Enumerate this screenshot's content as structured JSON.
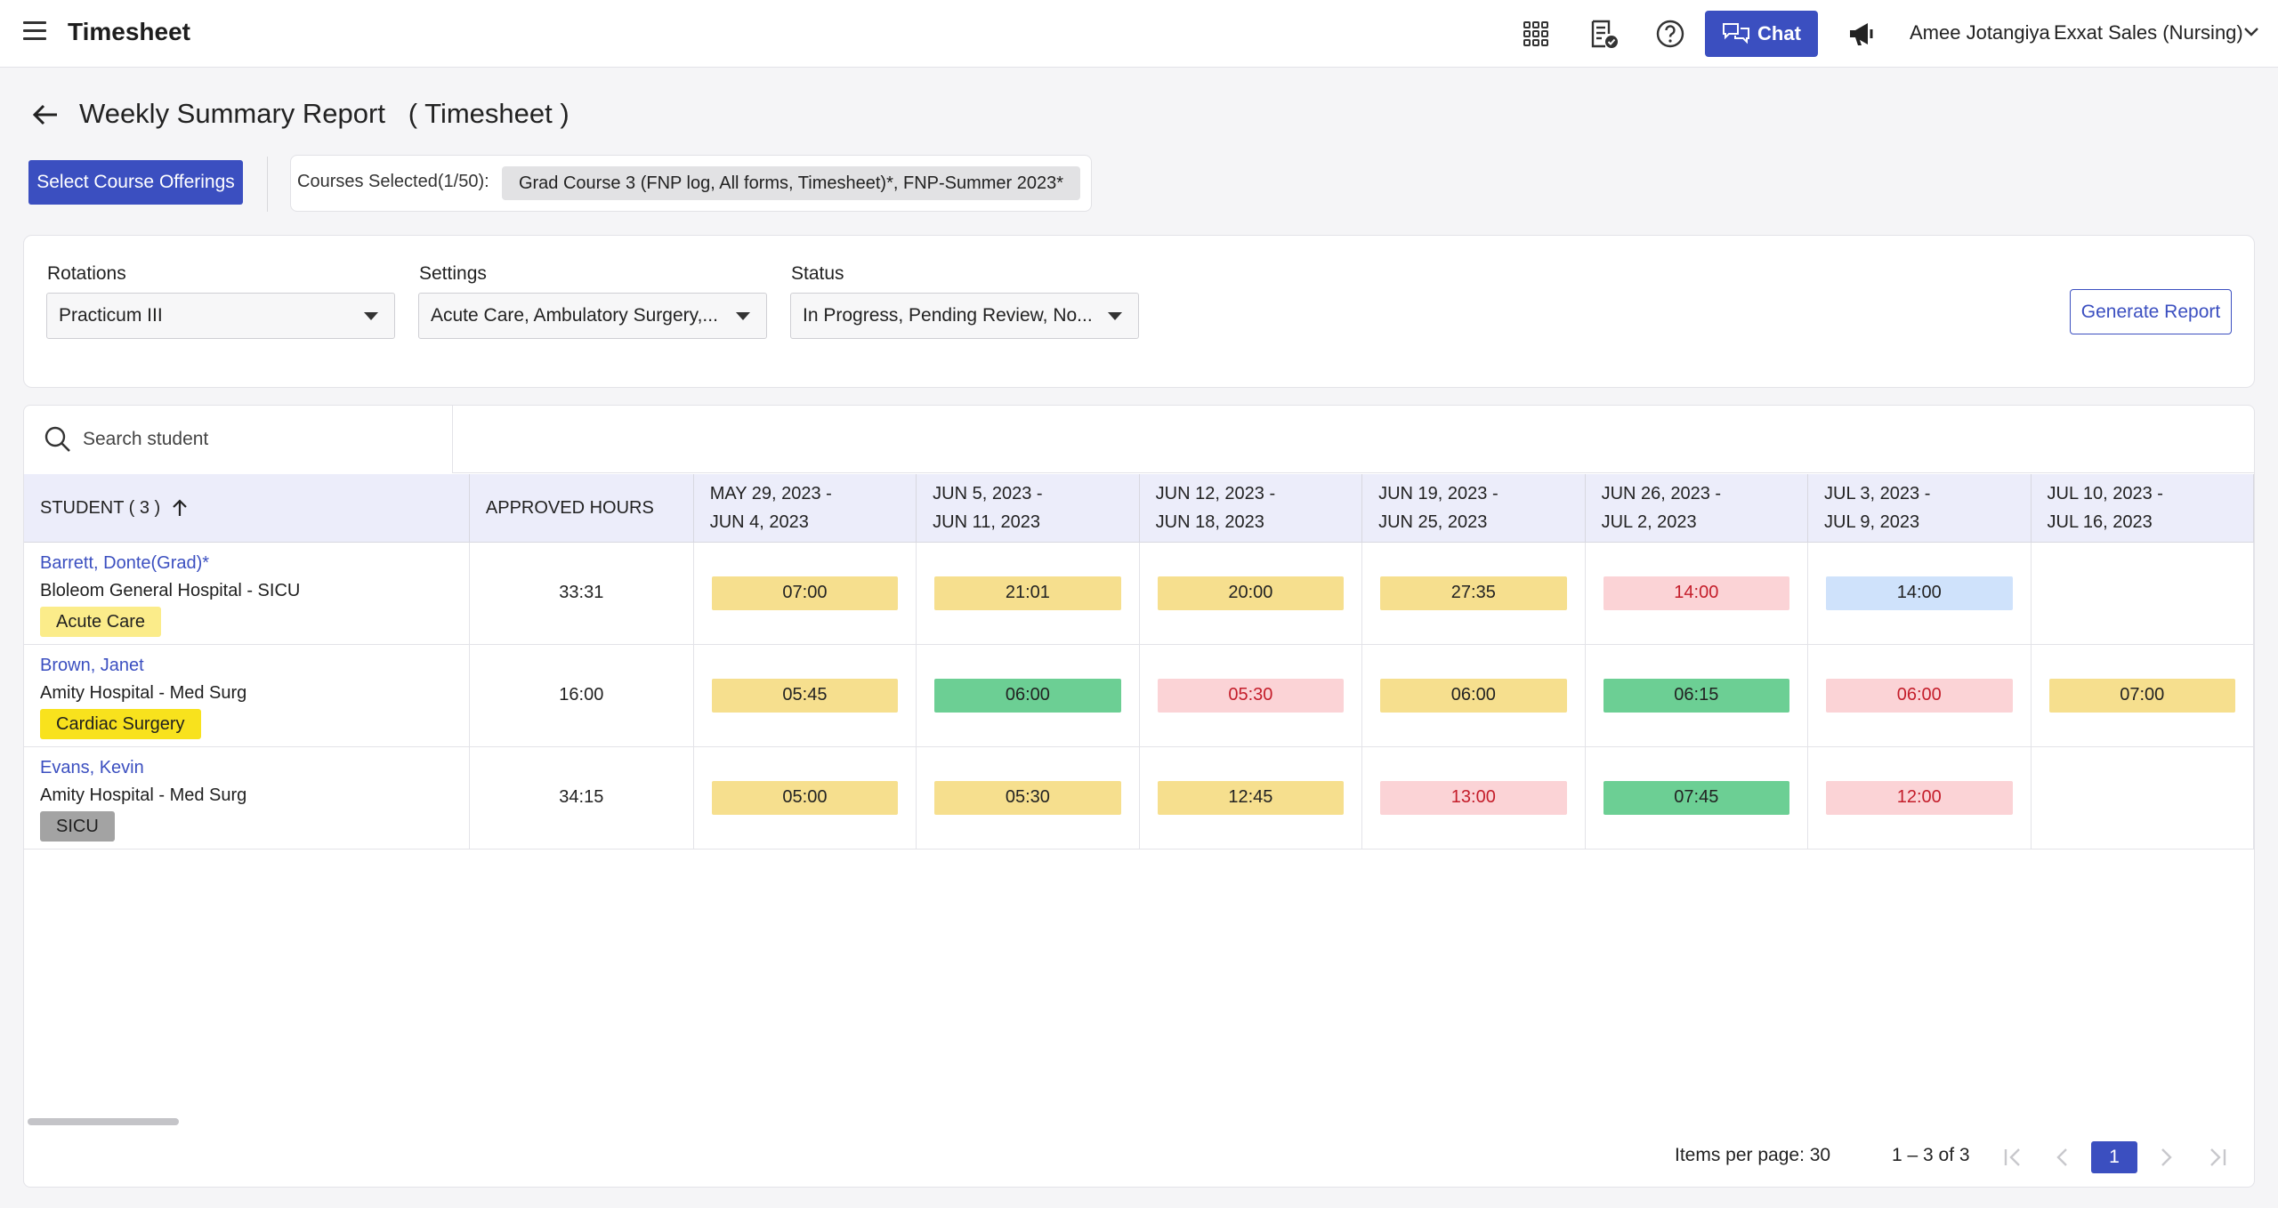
{
  "app": {
    "title": "Timesheet",
    "chat_label": "Chat",
    "user_name": "Amee Jotangiya",
    "org_name": "Exxat Sales (Nursing)"
  },
  "page": {
    "title": "Weekly Summary Report   ( Timesheet )",
    "select_button": "Select Course Offerings",
    "courses_label": "Courses Selected(1/50):",
    "courses_chip": "Grad Course 3 (FNP log, All forms, Timesheet)*, FNP-Summer 2023*"
  },
  "filters": {
    "rotations": {
      "label": "Rotations",
      "value": "Practicum III"
    },
    "settings": {
      "label": "Settings",
      "value": "Acute Care, Ambulatory Surgery,..."
    },
    "status": {
      "label": "Status",
      "value": "In Progress, Pending Review, No..."
    },
    "generate_button": "Generate Report"
  },
  "search": {
    "placeholder": "Search student"
  },
  "table": {
    "headers": {
      "student": "STUDENT ( 3 )",
      "approved": "APPROVED HOURS",
      "weeks": [
        {
          "line1": "MAY 29, 2023 -",
          "line2": "JUN 4, 2023"
        },
        {
          "line1": "JUN 5, 2023 -",
          "line2": "JUN 11, 2023"
        },
        {
          "line1": "JUN 12, 2023 -",
          "line2": "JUN 18, 2023"
        },
        {
          "line1": "JUN 19, 2023 -",
          "line2": "JUN 25, 2023"
        },
        {
          "line1": "JUN 26, 2023 -",
          "line2": "JUL 2, 2023"
        },
        {
          "line1": "JUL 3, 2023 -",
          "line2": "JUL 9, 2023"
        },
        {
          "line1": "JUL 10, 2023 -",
          "line2": "JUL 16, 2023"
        }
      ]
    },
    "rows": [
      {
        "name": "Barrett, Donte(Grad)*",
        "hospital": "Bloleom General Hospital - SICU",
        "tag": "Acute Care",
        "approved": "33:31",
        "weeks": [
          {
            "value": "07:00",
            "status": "pending"
          },
          {
            "value": "21:01",
            "status": "pending"
          },
          {
            "value": "20:00",
            "status": "pending"
          },
          {
            "value": "27:35",
            "status": "pending"
          },
          {
            "value": "14:00",
            "status": "rejected"
          },
          {
            "value": "14:00",
            "status": "info"
          },
          {
            "value": "",
            "status": "none"
          }
        ]
      },
      {
        "name": "Brown, Janet",
        "hospital": "Amity Hospital - Med Surg",
        "tag": "Cardiac Surgery",
        "approved": "16:00",
        "weeks": [
          {
            "value": "05:45",
            "status": "pending"
          },
          {
            "value": "06:00",
            "status": "approved"
          },
          {
            "value": "05:30",
            "status": "rejected"
          },
          {
            "value": "06:00",
            "status": "pending"
          },
          {
            "value": "06:15",
            "status": "approved"
          },
          {
            "value": "06:00",
            "status": "rejected"
          },
          {
            "value": "07:00",
            "status": "pending"
          }
        ]
      },
      {
        "name": "Evans, Kevin",
        "hospital": "Amity Hospital - Med Surg",
        "tag": "SICU",
        "approved": "34:15",
        "weeks": [
          {
            "value": "05:00",
            "status": "pending"
          },
          {
            "value": "05:30",
            "status": "pending"
          },
          {
            "value": "12:45",
            "status": "pending"
          },
          {
            "value": "13:00",
            "status": "rejected"
          },
          {
            "value": "07:45",
            "status": "approved"
          },
          {
            "value": "12:00",
            "status": "rejected"
          },
          {
            "value": "",
            "status": "none"
          }
        ]
      }
    ]
  },
  "pagination": {
    "items_per_page": "Items per page: 30",
    "range": "1 – 3 of 3",
    "current_page": "1"
  },
  "colors": {
    "primary": "#3b4fc0",
    "pending_bg": "#f6df8e",
    "approved_bg": "#6ccf94",
    "rejected_bg": "#fbd3d6",
    "rejected_text": "#c41d2a",
    "info_bg": "#cfe2fb",
    "tag_acute": "#fbec8a",
    "tag_cardiac": "#f8e21d",
    "tag_sicu": "#a3a3a3"
  }
}
